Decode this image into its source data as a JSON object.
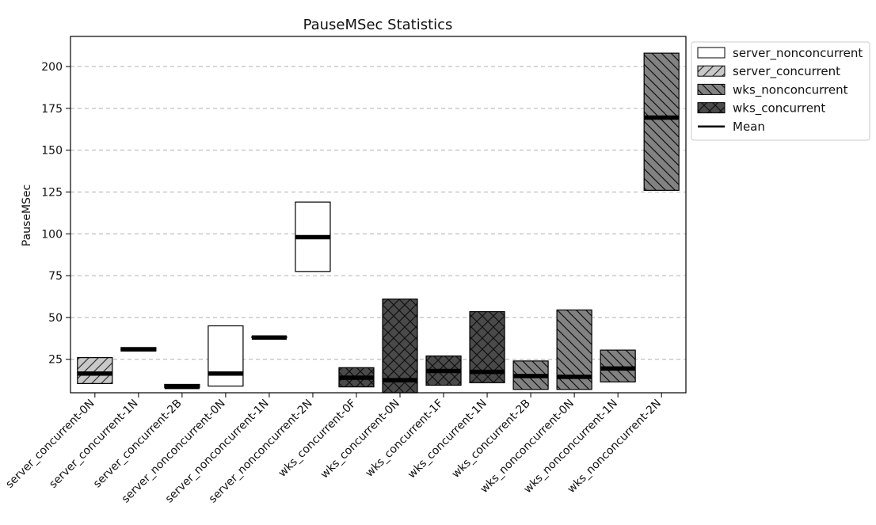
{
  "chart_data": {
    "type": "bar",
    "title": "PauseMSec Statistics",
    "xlabel": "",
    "ylabel": "PauseMSec",
    "ylim": [
      5,
      218
    ],
    "yticks": [
      25,
      50,
      75,
      100,
      125,
      150,
      175,
      200
    ],
    "grid": "y-dashed",
    "legend_position": "upper-right-outside",
    "categories": [
      "server_concurrent-0N",
      "server_concurrent-1N",
      "server_concurrent-2B",
      "server_nonconcurrent-0N",
      "server_nonconcurrent-1N",
      "server_nonconcurrent-2N",
      "wks_concurrent-0F",
      "wks_concurrent-0N",
      "wks_concurrent-1F",
      "wks_concurrent-1N",
      "wks_concurrent-2B",
      "wks_nonconcurrent-0N",
      "wks_nonconcurrent-1N",
      "wks_nonconcurrent-2N"
    ],
    "series": [
      {
        "name": "server_nonconcurrent",
        "fill": "#ffffff",
        "hatch": "none"
      },
      {
        "name": "server_concurrent",
        "fill": "#c8c8c8",
        "hatch": "forward"
      },
      {
        "name": "wks_nonconcurrent",
        "fill": "#828282",
        "hatch": "back"
      },
      {
        "name": "wks_concurrent",
        "fill": "#4a4a4a",
        "hatch": "cross"
      }
    ],
    "mean_legend": "Mean",
    "bars": [
      {
        "series": "server_concurrent",
        "low": 10.5,
        "high": 26,
        "mean": 16.5
      },
      {
        "series": "server_concurrent",
        "low": 30,
        "high": 32,
        "mean": 31
      },
      {
        "series": "server_concurrent",
        "low": 8,
        "high": 10,
        "mean": 8.5
      },
      {
        "series": "server_nonconcurrent",
        "low": 9,
        "high": 45,
        "mean": 16.5
      },
      {
        "series": "server_nonconcurrent",
        "low": 38,
        "high": 38.5,
        "mean": 38
      },
      {
        "series": "server_nonconcurrent",
        "low": 77.5,
        "high": 119,
        "mean": 98
      },
      {
        "series": "wks_concurrent",
        "low": 8.5,
        "high": 20,
        "mean": 14
      },
      {
        "series": "wks_concurrent",
        "low": 5,
        "high": 61,
        "mean": 12.5
      },
      {
        "series": "wks_concurrent",
        "low": 9.5,
        "high": 27,
        "mean": 18
      },
      {
        "series": "wks_concurrent",
        "low": 11,
        "high": 53.5,
        "mean": 17.5
      },
      {
        "series": "wks_nonconcurrent",
        "low": 7,
        "high": 24,
        "mean": 15
      },
      {
        "series": "wks_nonconcurrent",
        "low": 7,
        "high": 54.5,
        "mean": 14.5
      },
      {
        "series": "wks_nonconcurrent",
        "low": 11.5,
        "high": 30.5,
        "mean": 19.5
      },
      {
        "series": "wks_nonconcurrent",
        "low": 126,
        "high": 208,
        "mean": 169.5
      }
    ],
    "colors": {
      "grid": "#b0b0b0",
      "outline": "#000000",
      "mean": "#000000",
      "legend_border": "#cccccc"
    }
  }
}
